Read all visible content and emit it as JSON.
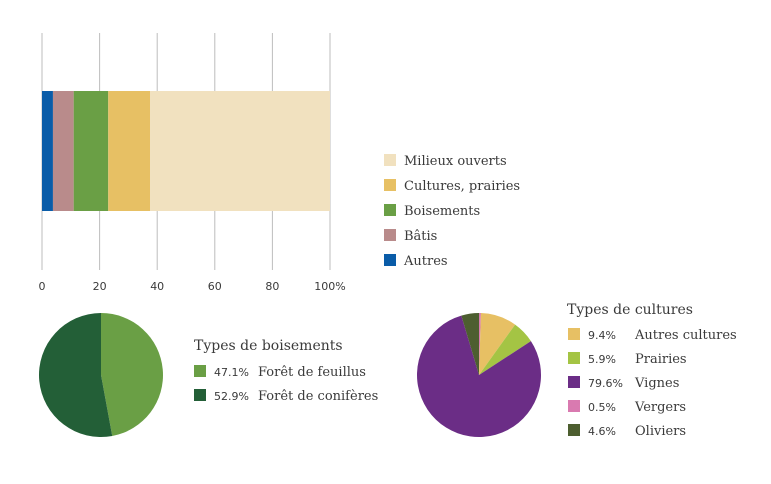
{
  "chart_data": [
    {
      "type": "bar",
      "orientation": "horizontal",
      "stacked": true,
      "categories": [
        ""
      ],
      "series": [
        {
          "name": "Autres",
          "values": [
            3.8
          ],
          "color": "#0a5ca8"
        },
        {
          "name": "Bâtis",
          "values": [
            7.2
          ],
          "color": "#b98b8b"
        },
        {
          "name": "Boisements",
          "values": [
            12.0
          ],
          "color": "#6a9f45"
        },
        {
          "name": "Cultures, prairies",
          "values": [
            14.5
          ],
          "color": "#e7c064"
        },
        {
          "name": "Milieux ouverts",
          "values": [
            62.5
          ],
          "color": "#f1e1bf"
        }
      ],
      "xlim": [
        0,
        100
      ],
      "xticks": [
        "0",
        "20",
        "40",
        "60",
        "80",
        "100%"
      ],
      "grid": true,
      "legend_placement": "right",
      "legend_order": [
        "Milieux ouverts",
        "Cultures, prairies",
        "Boisements",
        "Bâtis",
        "Autres"
      ]
    },
    {
      "type": "pie",
      "title": "Types de boisements",
      "slices": [
        {
          "name": "Forêt de feuillus",
          "value": 47.1,
          "label": "47.1%",
          "color": "#6a9f45"
        },
        {
          "name": "Forêt de conifères",
          "value": 52.9,
          "label": "52.9%",
          "color": "#235f37"
        }
      ],
      "legend_placement": "right"
    },
    {
      "type": "pie",
      "title": "Types de cultures",
      "slices": [
        {
          "name": "Vergers",
          "value": 0.5,
          "label": "0.5%",
          "color": "#d97ab0"
        },
        {
          "name": "Autres cultures",
          "value": 9.4,
          "label": "9.4%",
          "color": "#e7c064"
        },
        {
          "name": "Prairies",
          "value": 5.9,
          "label": "5.9%",
          "color": "#a4c444"
        },
        {
          "name": "Vignes",
          "value": 79.6,
          "label": "79.6%",
          "color": "#6b2d86"
        },
        {
          "name": "Oliviers",
          "value": 4.6,
          "label": "4.6%",
          "color": "#4d5e30"
        }
      ],
      "legend_order": [
        "Autres cultures",
        "Prairies",
        "Vignes",
        "Vergers",
        "Oliviers"
      ],
      "legend_placement": "right"
    }
  ]
}
